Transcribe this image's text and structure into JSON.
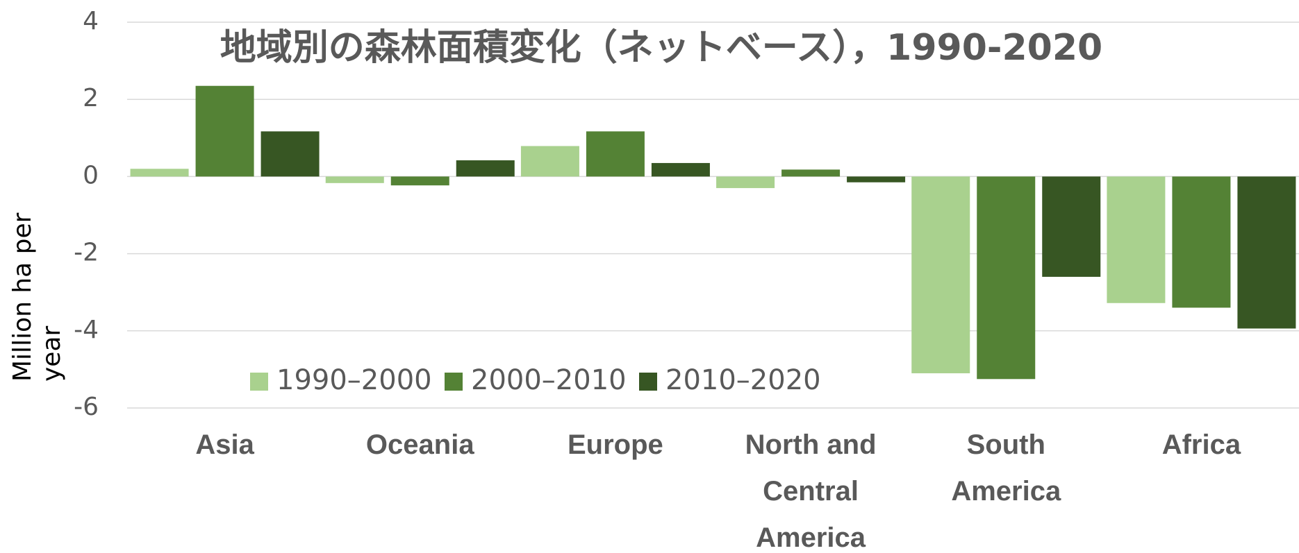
{
  "chart_data": {
    "type": "bar",
    "title": "地域別の森林面積変化（ネットベース），1990-2020",
    "y_label": "Million ha per year",
    "categories": [
      "Asia",
      "Oceania",
      "Europe",
      "North and Central America",
      "South America",
      "Africa"
    ],
    "series": [
      {
        "name": "1990–2000",
        "color": "#a9d18e",
        "values": [
          0.2,
          -0.17,
          0.79,
          -0.3,
          -5.1,
          -3.28
        ]
      },
      {
        "name": "2000–2010",
        "color": "#548235",
        "values": [
          2.35,
          -0.23,
          1.17,
          0.18,
          -5.25,
          -3.4
        ]
      },
      {
        "name": "2010–2020",
        "color": "#375623",
        "values": [
          1.17,
          0.42,
          0.35,
          -0.15,
          -2.6,
          -3.94
        ]
      }
    ],
    "ylim": [
      -6,
      4
    ],
    "yticks": [
      -6,
      -4,
      -2,
      0,
      2,
      4
    ],
    "grid": true,
    "legend": "lower left"
  }
}
